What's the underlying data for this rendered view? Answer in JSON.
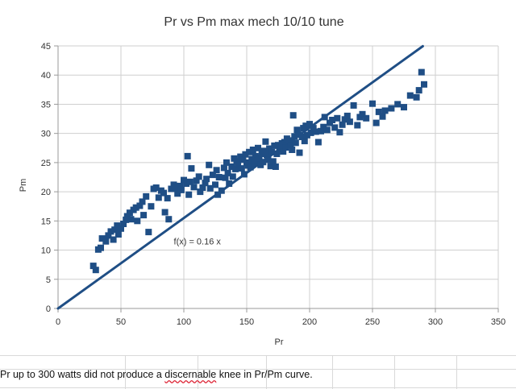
{
  "chart_data": {
    "type": "scatter",
    "title": "Pr vs Pm max mech 10/10 tune",
    "xlabel": "Pr",
    "ylabel": "Pm",
    "xlim": [
      0,
      350
    ],
    "ylim": [
      0,
      45
    ],
    "x_ticks": [
      "0",
      "50",
      "100",
      "150",
      "200",
      "250",
      "300",
      "350"
    ],
    "y_ticks": [
      "0",
      "5",
      "10",
      "15",
      "20",
      "25",
      "30",
      "35",
      "40",
      "45"
    ],
    "grid": true,
    "series": [
      {
        "name": "Pr vs Pm",
        "marker": "square",
        "color": "#1f4e85",
        "points": [
          [
            28,
            7.3
          ],
          [
            30,
            6.6
          ],
          [
            32,
            10.1
          ],
          [
            34,
            10.4
          ],
          [
            35,
            12.0
          ],
          [
            38,
            11.5
          ],
          [
            40,
            12.5
          ],
          [
            42,
            13.2
          ],
          [
            44,
            11.8
          ],
          [
            45,
            13.5
          ],
          [
            47,
            14.2
          ],
          [
            48,
            12.7
          ],
          [
            50,
            13.7
          ],
          [
            52,
            14.5
          ],
          [
            54,
            15.2
          ],
          [
            55,
            15.8
          ],
          [
            57,
            16.4
          ],
          [
            58,
            15.3
          ],
          [
            60,
            16.9
          ],
          [
            62,
            17.3
          ],
          [
            63,
            15.0
          ],
          [
            65,
            17.6
          ],
          [
            67,
            18.3
          ],
          [
            68,
            16.0
          ],
          [
            70,
            19.2
          ],
          [
            72,
            13.1
          ],
          [
            74,
            17.5
          ],
          [
            76,
            20.5
          ],
          [
            78,
            20.7
          ],
          [
            80,
            19.0
          ],
          [
            82,
            20.2
          ],
          [
            84,
            19.8
          ],
          [
            85,
            16.5
          ],
          [
            87,
            18.9
          ],
          [
            88,
            15.3
          ],
          [
            90,
            20.5
          ],
          [
            92,
            21.2
          ],
          [
            93,
            20.6
          ],
          [
            95,
            19.7
          ],
          [
            97,
            21.0
          ],
          [
            98,
            20.3
          ],
          [
            100,
            22.0
          ],
          [
            102,
            21.4
          ],
          [
            103,
            26.1
          ],
          [
            104,
            19.5
          ],
          [
            105,
            21.7
          ],
          [
            106,
            24.0
          ],
          [
            108,
            20.8
          ],
          [
            110,
            21.9
          ],
          [
            112,
            22.6
          ],
          [
            113,
            20.0
          ],
          [
            115,
            20.7
          ],
          [
            117,
            21.5
          ],
          [
            118,
            22.2
          ],
          [
            120,
            24.6
          ],
          [
            121,
            20.6
          ],
          [
            123,
            22.9
          ],
          [
            125,
            21.2
          ],
          [
            126,
            23.7
          ],
          [
            127,
            19.5
          ],
          [
            128,
            22.5
          ],
          [
            130,
            20.2
          ],
          [
            132,
            24.1
          ],
          [
            133,
            22.4
          ],
          [
            134,
            25.0
          ],
          [
            135,
            23.2
          ],
          [
            136,
            21.4
          ],
          [
            138,
            24.3
          ],
          [
            139,
            22.6
          ],
          [
            140,
            25.7
          ],
          [
            141,
            23.9
          ],
          [
            142,
            25.2
          ],
          [
            143,
            24.6
          ],
          [
            145,
            26.0
          ],
          [
            146,
            24.0
          ],
          [
            147,
            25.5
          ],
          [
            148,
            23.0
          ],
          [
            149,
            26.4
          ],
          [
            150,
            25.0
          ],
          [
            151,
            24.5
          ],
          [
            152,
            26.8
          ],
          [
            153,
            24.2
          ],
          [
            154,
            25.6
          ],
          [
            155,
            27.2
          ],
          [
            156,
            24.9
          ],
          [
            157,
            26.1
          ],
          [
            158,
            25.3
          ],
          [
            159,
            27.5
          ],
          [
            160,
            25.8
          ],
          [
            161,
            24.6
          ],
          [
            162,
            26.5
          ],
          [
            163,
            25.1
          ],
          [
            164,
            27.0
          ],
          [
            165,
            28.6
          ],
          [
            166,
            26.3
          ],
          [
            167,
            25.5
          ],
          [
            168,
            27.4
          ],
          [
            169,
            24.4
          ],
          [
            170,
            26.8
          ],
          [
            171,
            25.2
          ],
          [
            172,
            27.9
          ],
          [
            173,
            24.3
          ],
          [
            174,
            26.5
          ],
          [
            175,
            28.0
          ],
          [
            176,
            27.3
          ],
          [
            178,
            28.3
          ],
          [
            179,
            26.9
          ],
          [
            180,
            28.5
          ],
          [
            181,
            27.6
          ],
          [
            182,
            29.1
          ],
          [
            184,
            28.8
          ],
          [
            185,
            28.0
          ],
          [
            186,
            27.2
          ],
          [
            187,
            33.1
          ],
          [
            188,
            29.5
          ],
          [
            189,
            28.4
          ],
          [
            190,
            30.6
          ],
          [
            191,
            29.8
          ],
          [
            192,
            26.7
          ],
          [
            194,
            29.4
          ],
          [
            195,
            30.9
          ],
          [
            196,
            28.7
          ],
          [
            197,
            31.3
          ],
          [
            198,
            29.7
          ],
          [
            200,
            31.6
          ],
          [
            201,
            30.1
          ],
          [
            203,
            30.9
          ],
          [
            205,
            30.3
          ],
          [
            207,
            28.5
          ],
          [
            209,
            30.4
          ],
          [
            211,
            31.1
          ],
          [
            212,
            32.8
          ],
          [
            214,
            30.6
          ],
          [
            216,
            31.8
          ],
          [
            218,
            32.3
          ],
          [
            220,
            31.0
          ],
          [
            222,
            32.6
          ],
          [
            224,
            30.2
          ],
          [
            226,
            31.5
          ],
          [
            228,
            32.4
          ],
          [
            230,
            33.0
          ],
          [
            232,
            32.0
          ],
          [
            235,
            34.8
          ],
          [
            238,
            31.4
          ],
          [
            240,
            32.8
          ],
          [
            242,
            33.3
          ],
          [
            245,
            32.6
          ],
          [
            250,
            35.1
          ],
          [
            253,
            31.8
          ],
          [
            255,
            33.7
          ],
          [
            258,
            32.9
          ],
          [
            260,
            33.9
          ],
          [
            265,
            34.3
          ],
          [
            270,
            35.0
          ],
          [
            275,
            34.5
          ],
          [
            280,
            36.5
          ],
          [
            285,
            36.2
          ],
          [
            287,
            37.4
          ],
          [
            289,
            40.5
          ],
          [
            291,
            38.4
          ]
        ]
      }
    ],
    "trendline": {
      "label": "f(x) = 0.16 x",
      "slope": 0.155,
      "x_range": [
        0,
        290
      ],
      "color": "#1f4e85",
      "label_at": [
        92,
        11
      ]
    }
  },
  "footer": {
    "note_before": "Pr up to 300 watts did not produce a ",
    "note_flagged": "discernable",
    "note_after": " knee in Pr/Pm curve."
  }
}
